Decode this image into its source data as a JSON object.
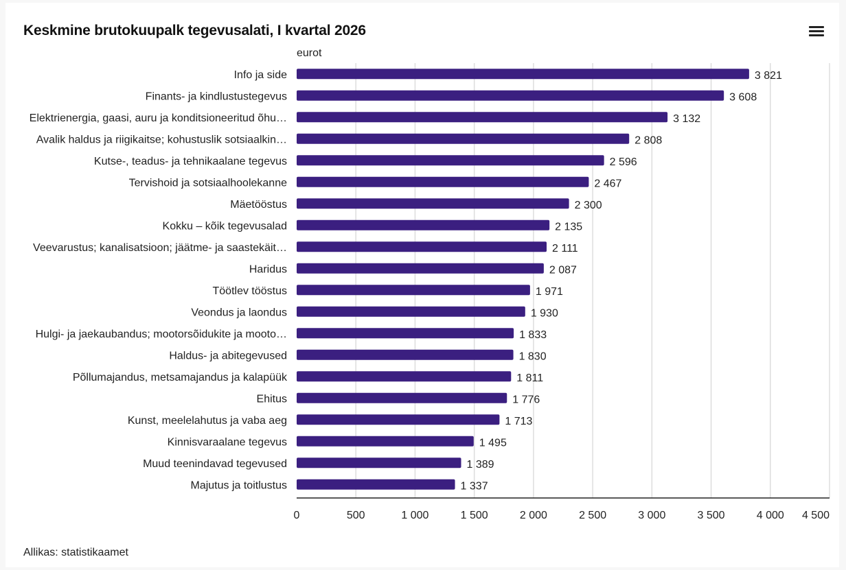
{
  "title": "Keskmine brutokuupalk tegevusalati, I kvartal 2026",
  "unit_label": "eurot",
  "source": "Allikas: statistikaamet",
  "menu_icon": "hamburger-menu-icon",
  "colors": {
    "bar": "#3b1f80",
    "grid": "#dddddd",
    "axis": "#222222"
  },
  "chart_data": {
    "type": "bar",
    "orientation": "horizontal",
    "title": "Keskmine brutokuupalk tegevusalati, I kvartal 2026",
    "ylabel": "eurot",
    "xlim": [
      0,
      4500
    ],
    "ticks": [
      0,
      500,
      1000,
      1500,
      2000,
      2500,
      3000,
      3500,
      4000,
      4500
    ],
    "tick_labels": [
      "0",
      "500",
      "1 000",
      "1 500",
      "2 000",
      "2 500",
      "3 000",
      "3 500",
      "4 000",
      "4 500"
    ],
    "grid": true,
    "categories": [
      "Info ja side",
      "Finants- ja kindlustustegevus",
      "Elektrienergia, gaasi, auru ja konditsioneeritud õhu…",
      "Avalik haldus ja riigikaitse; kohustuslik sotsiaalkin…",
      "Kutse-, teadus- ja tehnikaalane tegevus",
      "Tervishoid ja sotsiaalhoolekanne",
      "Mäetööstus",
      "Kokku – kõik tegevusalad",
      "Veevarustus; kanalisatsioon; jäätme- ja saastekäit…",
      "Haridus",
      "Töötlev tööstus",
      "Veondus ja laondus",
      "Hulgi- ja jaekaubandus; mootorsõidukite ja mooto…",
      "Haldus- ja abitegevused",
      "Põllumajandus, metsamajandus ja kalapüük",
      "Ehitus",
      "Kunst, meelelahutus ja vaba aeg",
      "Kinnisvaraalane tegevus",
      "Muud teenindavad tegevused",
      "Majutus ja toitlustus"
    ],
    "values": [
      3821,
      3608,
      3132,
      2808,
      2596,
      2467,
      2300,
      2135,
      2111,
      2087,
      1971,
      1930,
      1833,
      1830,
      1811,
      1776,
      1713,
      1495,
      1389,
      1337
    ],
    "value_labels": [
      "3 821",
      "3 608",
      "3 132",
      "2 808",
      "2 596",
      "2 467",
      "2 300",
      "2 135",
      "2 111",
      "2 087",
      "1 971",
      "1 930",
      "1 833",
      "1 830",
      "1 811",
      "1 776",
      "1 713",
      "1 495",
      "1 389",
      "1 337"
    ]
  }
}
